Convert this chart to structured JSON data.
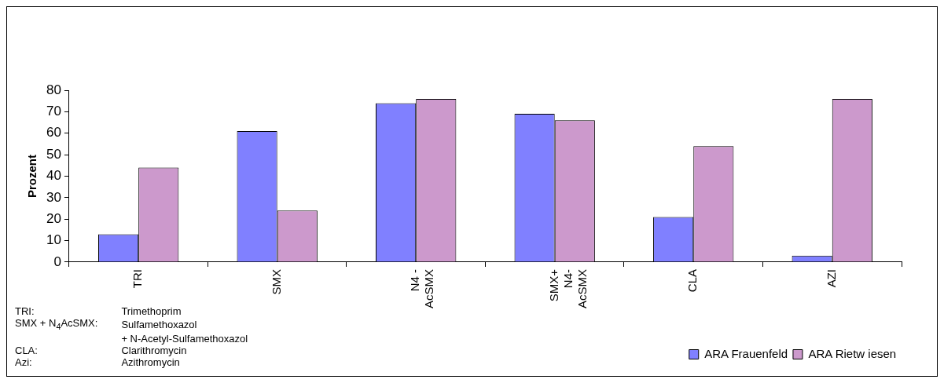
{
  "chart_data": {
    "type": "bar",
    "ylabel": "Prozent",
    "categories": [
      "TRI",
      "SMX",
      "N4 -\nAcSMX",
      "SMX+\nN4-\nAcSMX",
      "CLA",
      "AZI"
    ],
    "series": [
      {
        "name": "ARA Frauenfeld",
        "color": "#8080ff",
        "values": [
          13,
          61,
          74,
          69,
          21,
          3
        ]
      },
      {
        "name": "ARA Rietw iesen",
        "color": "#cc99cc",
        "values": [
          44,
          24,
          76,
          66,
          54,
          76
        ]
      }
    ],
    "ylim": [
      0,
      80
    ],
    "yticks": [
      0,
      10,
      20,
      30,
      40,
      50,
      60,
      70,
      80
    ],
    "grid": false,
    "legend": "bottom right",
    "annotations": [
      "TRI:\tTrimethoprim",
      "SMX + N$_{4}$AcSMX:\tSulfamethoxazol",
      "\t+ N-Acetyl-Sulfamethoxazol",
      "CLA:\tClarithromycin",
      "Azi:\tAzithromycin"
    ]
  }
}
